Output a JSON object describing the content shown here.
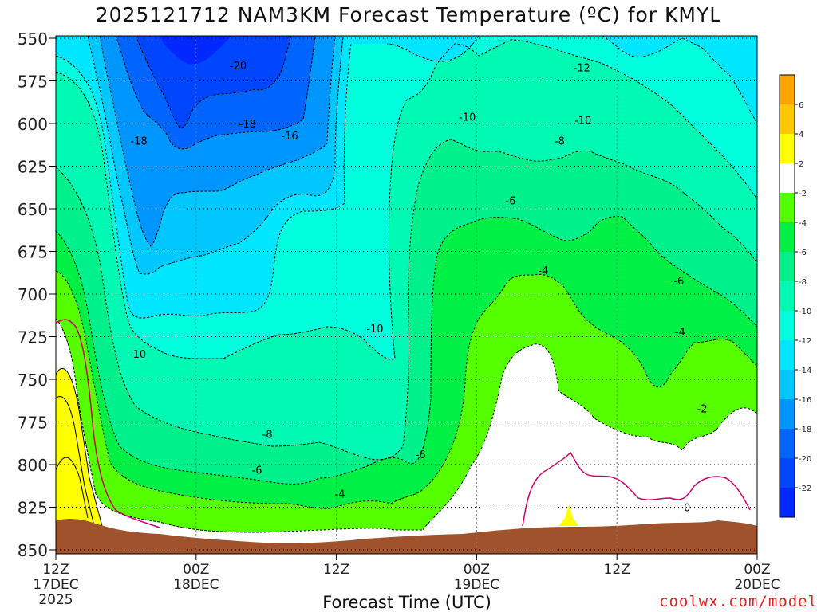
{
  "chart_data": {
    "type": "heatmap",
    "title": "2025121712 NAM3KM Forecast Temperature (ºC) for KMYL",
    "xlabel": "Forecast Time (UTC)",
    "ylabel": "Pressure (hPa)",
    "credit": "coolwx.com/modelts",
    "x_hours": [
      0,
      12,
      24,
      36,
      48,
      60
    ],
    "x_tick_labels": [
      {
        "hour": 0,
        "lines": [
          "12Z",
          "17DEC",
          "2025"
        ]
      },
      {
        "hour": 12,
        "lines": [
          "00Z",
          "18DEC"
        ]
      },
      {
        "hour": 24,
        "lines": [
          "12Z"
        ]
      },
      {
        "hour": 36,
        "lines": [
          "00Z",
          "19DEC"
        ]
      },
      {
        "hour": 48,
        "lines": [
          "12Z"
        ]
      },
      {
        "hour": 60,
        "lines": [
          "00Z",
          "20DEC"
        ]
      }
    ],
    "y_ticks": [
      550,
      575,
      600,
      625,
      650,
      675,
      700,
      725,
      750,
      775,
      800,
      825,
      850
    ],
    "ylim": [
      550,
      850
    ],
    "xlim": [
      0,
      60
    ],
    "colorbar": {
      "bins": [
        {
          "lo": 6,
          "hi": 8,
          "color": "#FFA500"
        },
        {
          "lo": 4,
          "hi": 6,
          "color": "#FFC800"
        },
        {
          "lo": 2,
          "hi": 4,
          "color": "#FFFF00"
        },
        {
          "lo": -2,
          "hi": 2,
          "color": "#FFFFFF"
        },
        {
          "lo": -4,
          "hi": -2,
          "color": "#55FF00"
        },
        {
          "lo": -6,
          "hi": -4,
          "color": "#00F046"
        },
        {
          "lo": -8,
          "hi": -6,
          "color": "#00F08C"
        },
        {
          "lo": -10,
          "hi": -8,
          "color": "#00FAB4"
        },
        {
          "lo": -12,
          "hi": -10,
          "color": "#00FFDC"
        },
        {
          "lo": -14,
          "hi": -12,
          "color": "#00E6FF"
        },
        {
          "lo": -16,
          "hi": -14,
          "color": "#00C8FF"
        },
        {
          "lo": -18,
          "hi": -16,
          "color": "#0096FF"
        },
        {
          "lo": -20,
          "hi": -18,
          "color": "#0064FF"
        },
        {
          "lo": -22,
          "hi": -20,
          "color": "#0046FF"
        },
        {
          "lo": -24,
          "hi": -22,
          "color": "#0028FF"
        }
      ],
      "tick_labels": [
        "6",
        "4",
        "2",
        "-2",
        "-4",
        "-6",
        "-8",
        "-10",
        "-12",
        "-14",
        "-16",
        "-18",
        "-20",
        "-22"
      ]
    },
    "contour_labels": [
      {
        "text": "-20",
        "hour": 15.6,
        "pressure": 566
      },
      {
        "text": "-18",
        "hour": 7.1,
        "pressure": 610
      },
      {
        "text": "-18",
        "hour": 16.4,
        "pressure": 600
      },
      {
        "text": "-16",
        "hour": 20.0,
        "pressure": 607
      },
      {
        "text": "-12",
        "hour": 45.0,
        "pressure": 567
      },
      {
        "text": "-10",
        "hour": 35.2,
        "pressure": 596
      },
      {
        "text": "-10",
        "hour": 45.1,
        "pressure": 598
      },
      {
        "text": "-10",
        "hour": 27.3,
        "pressure": 720
      },
      {
        "text": "-10",
        "hour": 7.0,
        "pressure": 735
      },
      {
        "text": "-8",
        "hour": 43.1,
        "pressure": 610
      },
      {
        "text": "-8",
        "hour": 18.1,
        "pressure": 782
      },
      {
        "text": "-6",
        "hour": 38.9,
        "pressure": 645
      },
      {
        "text": "-6",
        "hour": 17.2,
        "pressure": 803
      },
      {
        "text": "-6",
        "hour": 31.2,
        "pressure": 794
      },
      {
        "text": "-6",
        "hour": 53.3,
        "pressure": 692
      },
      {
        "text": "-4",
        "hour": 41.7,
        "pressure": 686
      },
      {
        "text": "-4",
        "hour": 24.3,
        "pressure": 817
      },
      {
        "text": "-4",
        "hour": 53.4,
        "pressure": 722
      },
      {
        "text": "-2",
        "hour": 55.3,
        "pressure": 767
      },
      {
        "text": "0",
        "hour": 54.0,
        "pressure": 825
      }
    ],
    "terrain_pressure_hpa": 845
  }
}
